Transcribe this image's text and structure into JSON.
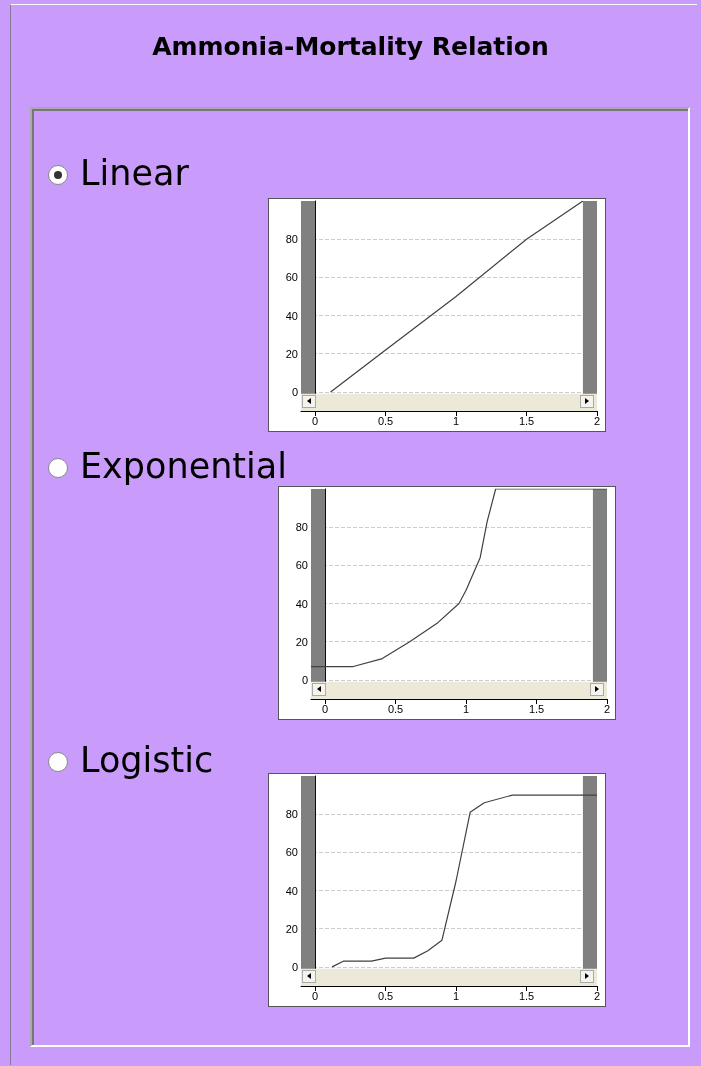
{
  "chart_data": [
    {
      "type": "other",
      "title": "Ammonia-Mortality Relation"
    },
    {
      "type": "line",
      "title": "Linear",
      "xlim": [
        -0.1,
        2
      ],
      "xticks": [
        0,
        0.5,
        1,
        1.5,
        2
      ],
      "ylim": [
        -10,
        100
      ],
      "yticks": [
        0,
        20,
        40,
        60,
        80
      ],
      "grid": "y",
      "marker": "none",
      "bands": [
        {
          "axis": "x",
          "from": -0.1,
          "to": 0,
          "color": "#808080"
        },
        {
          "axis": "x",
          "from": 1.9,
          "to": 2,
          "color": "#808080"
        },
        {
          "axis": "y",
          "from": -10,
          "to": -1,
          "color": "#ece9d8"
        }
      ],
      "series": [
        {
          "color": "#404040",
          "x": [
            0.11,
            0.5,
            1,
            1.5,
            1.9
          ],
          "values": [
            0,
            22,
            50,
            80,
            100
          ]
        }
      ]
    },
    {
      "type": "line",
      "title": "Exponential",
      "xlim": [
        -0.1,
        2
      ],
      "xticks": [
        0,
        0.5,
        1,
        1.5,
        2
      ],
      "ylim": [
        -10,
        100
      ],
      "yticks": [
        0,
        20,
        40,
        60,
        80
      ],
      "grid": "y",
      "marker": "none",
      "bands": [
        {
          "axis": "x",
          "from": -0.1,
          "to": 0,
          "color": "#808080"
        },
        {
          "axis": "x",
          "from": 1.9,
          "to": 2,
          "color": "#808080"
        },
        {
          "axis": "y",
          "from": -10,
          "to": -1,
          "color": "#ece9d8"
        }
      ],
      "series": [
        {
          "color": "#404040",
          "x": [
            -0.1,
            0.2,
            0.4,
            0.6,
            0.8,
            0.95,
            1,
            1.1,
            1.15,
            1.21,
            2
          ],
          "values": [
            7,
            7,
            11,
            20,
            30,
            40,
            47,
            64,
            83,
            100,
            100
          ]
        }
      ]
    },
    {
      "type": "line",
      "title": "Logistic",
      "xlim": [
        -0.1,
        2
      ],
      "xticks": [
        0,
        0.5,
        1,
        1.5,
        2
      ],
      "ylim": [
        -10,
        100
      ],
      "yticks": [
        0,
        20,
        40,
        60,
        80
      ],
      "grid": "y",
      "marker": "none",
      "bands": [
        {
          "axis": "x",
          "from": -0.1,
          "to": 0,
          "color": "#808080"
        },
        {
          "axis": "x",
          "from": 1.9,
          "to": 2,
          "color": "#808080"
        },
        {
          "axis": "y",
          "from": -10,
          "to": -1,
          "color": "#ece9d8"
        }
      ],
      "series": [
        {
          "color": "#404040",
          "x": [
            0.12,
            0.2,
            0.4,
            0.5,
            0.7,
            0.8,
            0.9,
            1,
            1.1,
            1.2,
            1.4,
            2
          ],
          "values": [
            0,
            3,
            3,
            4.6,
            4.6,
            8.5,
            14,
            45,
            81,
            86,
            90,
            90
          ]
        }
      ]
    }
  ]
}
